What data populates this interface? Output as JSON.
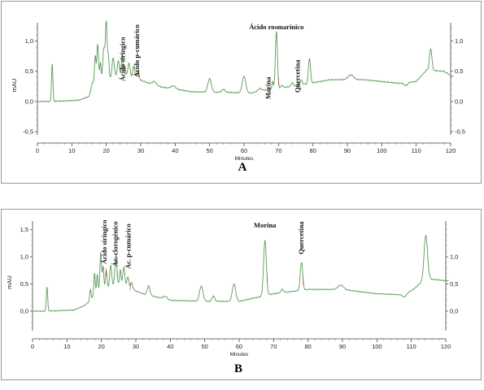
{
  "chart_data": [
    {
      "type": "line",
      "panel_label": "A",
      "xlabel": "Minutes",
      "ylabel": "mAU",
      "xlim": [
        0,
        120
      ],
      "ylim": [
        -0.5,
        1.25
      ],
      "xticks": [
        "0",
        "10",
        "20",
        "30",
        "40",
        "50",
        "60",
        "70",
        "80",
        "90",
        "100",
        "110",
        "120"
      ],
      "yticks_left": [
        "-0,5",
        "0,0",
        "0,5",
        "1,0"
      ],
      "yticks_right": [
        "-0,5",
        "0,0",
        "0,5",
        "1,0"
      ],
      "baseline_points": [
        [
          0,
          0
        ],
        [
          4,
          0
        ],
        [
          12,
          0.02
        ],
        [
          15,
          0.08
        ],
        [
          16,
          0.32
        ],
        [
          25,
          0.45
        ],
        [
          35,
          0.25
        ],
        [
          45,
          0.16
        ],
        [
          55,
          0.15
        ],
        [
          62,
          0.14
        ],
        [
          65,
          0.18
        ],
        [
          75,
          0.26
        ],
        [
          85,
          0.36
        ],
        [
          95,
          0.36
        ],
        [
          105,
          0.3
        ],
        [
          110,
          0.33
        ],
        [
          113,
          0.52
        ],
        [
          118,
          0.5
        ],
        [
          121,
          0.4
        ]
      ],
      "peaks": [
        [
          4.3,
          0.62,
          0.2
        ],
        [
          16.8,
          0.42,
          0.2
        ],
        [
          17.5,
          0.6,
          0.25
        ],
        [
          18.3,
          0.28,
          0.2
        ],
        [
          19.3,
          0.5,
          0.3
        ],
        [
          20.0,
          0.92,
          0.25
        ],
        [
          20.6,
          0.35,
          0.2
        ],
        [
          22.0,
          0.32,
          0.3
        ],
        [
          23.5,
          0.24,
          0.3
        ],
        [
          24.6,
          0.35,
          0.2
        ],
        [
          25.4,
          0.14,
          0.2
        ],
        [
          26.6,
          0.22,
          0.3
        ],
        [
          28.0,
          0.2,
          0.3
        ],
        [
          29.2,
          0.15,
          0.3
        ],
        [
          34.0,
          0.06,
          0.6
        ],
        [
          39.5,
          0.05,
          0.6
        ],
        [
          50.0,
          0.22,
          0.5
        ],
        [
          54.0,
          0.05,
          0.5
        ],
        [
          60.0,
          0.28,
          0.5
        ],
        [
          64.6,
          0.04,
          0.5
        ],
        [
          68.3,
          0.12,
          0.2
        ],
        [
          69.4,
          0.95,
          0.3
        ],
        [
          71.0,
          0.04,
          0.3
        ],
        [
          74.0,
          0.06,
          0.3
        ],
        [
          76.6,
          0.08,
          0.3
        ],
        [
          79.0,
          0.42,
          0.3
        ],
        [
          91.0,
          0.08,
          0.8
        ],
        [
          107.0,
          -0.05,
          0.5
        ],
        [
          114.2,
          0.36,
          0.35
        ]
      ],
      "annotations": [
        {
          "text": "Ácido siríngico",
          "x": 24.7,
          "rotated": true
        },
        {
          "text": "Ácido p-cumárico",
          "x": 28.8,
          "rotated": true
        },
        {
          "text": "Ácido rosmarínico",
          "x": 69.4,
          "rotated": false
        },
        {
          "text": "Morina",
          "x": 67.0,
          "rotated": true
        },
        {
          "text": "Quercetina",
          "x": 75.5,
          "rotated": true
        }
      ]
    },
    {
      "type": "line",
      "panel_label": "B",
      "xlabel": "Minutes",
      "ylabel": "mAU",
      "xlim": [
        0,
        120
      ],
      "ylim": [
        -0.3,
        1.6
      ],
      "xticks": [
        "0",
        "10",
        "20",
        "30",
        "40",
        "50",
        "60",
        "70",
        "80",
        "90",
        "100",
        "110",
        "120"
      ],
      "yticks_left": [
        "0,0",
        "0,5",
        "1,0",
        "1,5"
      ],
      "yticks_right": [
        "0,0",
        "0,5",
        "1,0"
      ],
      "baseline_points": [
        [
          0,
          0
        ],
        [
          4,
          0
        ],
        [
          12,
          0.02
        ],
        [
          15,
          0.1
        ],
        [
          16.5,
          0.18
        ],
        [
          18.5,
          0.32
        ],
        [
          25,
          0.5
        ],
        [
          32,
          0.32
        ],
        [
          40,
          0.2
        ],
        [
          50,
          0.18
        ],
        [
          60,
          0.18
        ],
        [
          70,
          0.32
        ],
        [
          80,
          0.4
        ],
        [
          90,
          0.4
        ],
        [
          100,
          0.32
        ],
        [
          108,
          0.3
        ],
        [
          111,
          0.42
        ],
        [
          114,
          0.6
        ],
        [
          120,
          0.56
        ]
      ],
      "peaks": [
        [
          4.2,
          0.45,
          0.2
        ],
        [
          16.8,
          0.2,
          0.2
        ],
        [
          18.0,
          0.42,
          0.2
        ],
        [
          18.8,
          0.35,
          0.2
        ],
        [
          19.8,
          0.72,
          0.25
        ],
        [
          20.5,
          0.45,
          0.2
        ],
        [
          21.4,
          0.35,
          0.25
        ],
        [
          22.7,
          0.4,
          0.3
        ],
        [
          24.2,
          0.55,
          0.3
        ],
        [
          25.5,
          0.28,
          0.2
        ],
        [
          26.5,
          0.35,
          0.3
        ],
        [
          27.7,
          0.2,
          0.3
        ],
        [
          28.8,
          0.12,
          0.3
        ],
        [
          33.7,
          0.17,
          0.4
        ],
        [
          38.5,
          0.05,
          0.6
        ],
        [
          49.0,
          0.28,
          0.5
        ],
        [
          52.5,
          0.1,
          0.4
        ],
        [
          58.5,
          0.32,
          0.5
        ],
        [
          67.5,
          1.02,
          0.4
        ],
        [
          72.5,
          0.06,
          0.4
        ],
        [
          78.1,
          0.52,
          0.35
        ],
        [
          89.5,
          0.08,
          0.8
        ],
        [
          108.0,
          -0.04,
          0.5
        ],
        [
          114.2,
          0.8,
          0.5
        ]
      ],
      "annotations": [
        {
          "text": "Ácido siríngico",
          "x": 20.8,
          "rotated": true
        },
        {
          "text": "Ác. clorogénico",
          "x": 24.0,
          "rotated": true
        },
        {
          "text": "Ác. p-cumárico",
          "x": 27.8,
          "rotated": true
        },
        {
          "text": "Morina",
          "x": 67.5,
          "rotated": false
        },
        {
          "text": "Quercetina",
          "x": 78.0,
          "rotated": true
        }
      ]
    }
  ]
}
